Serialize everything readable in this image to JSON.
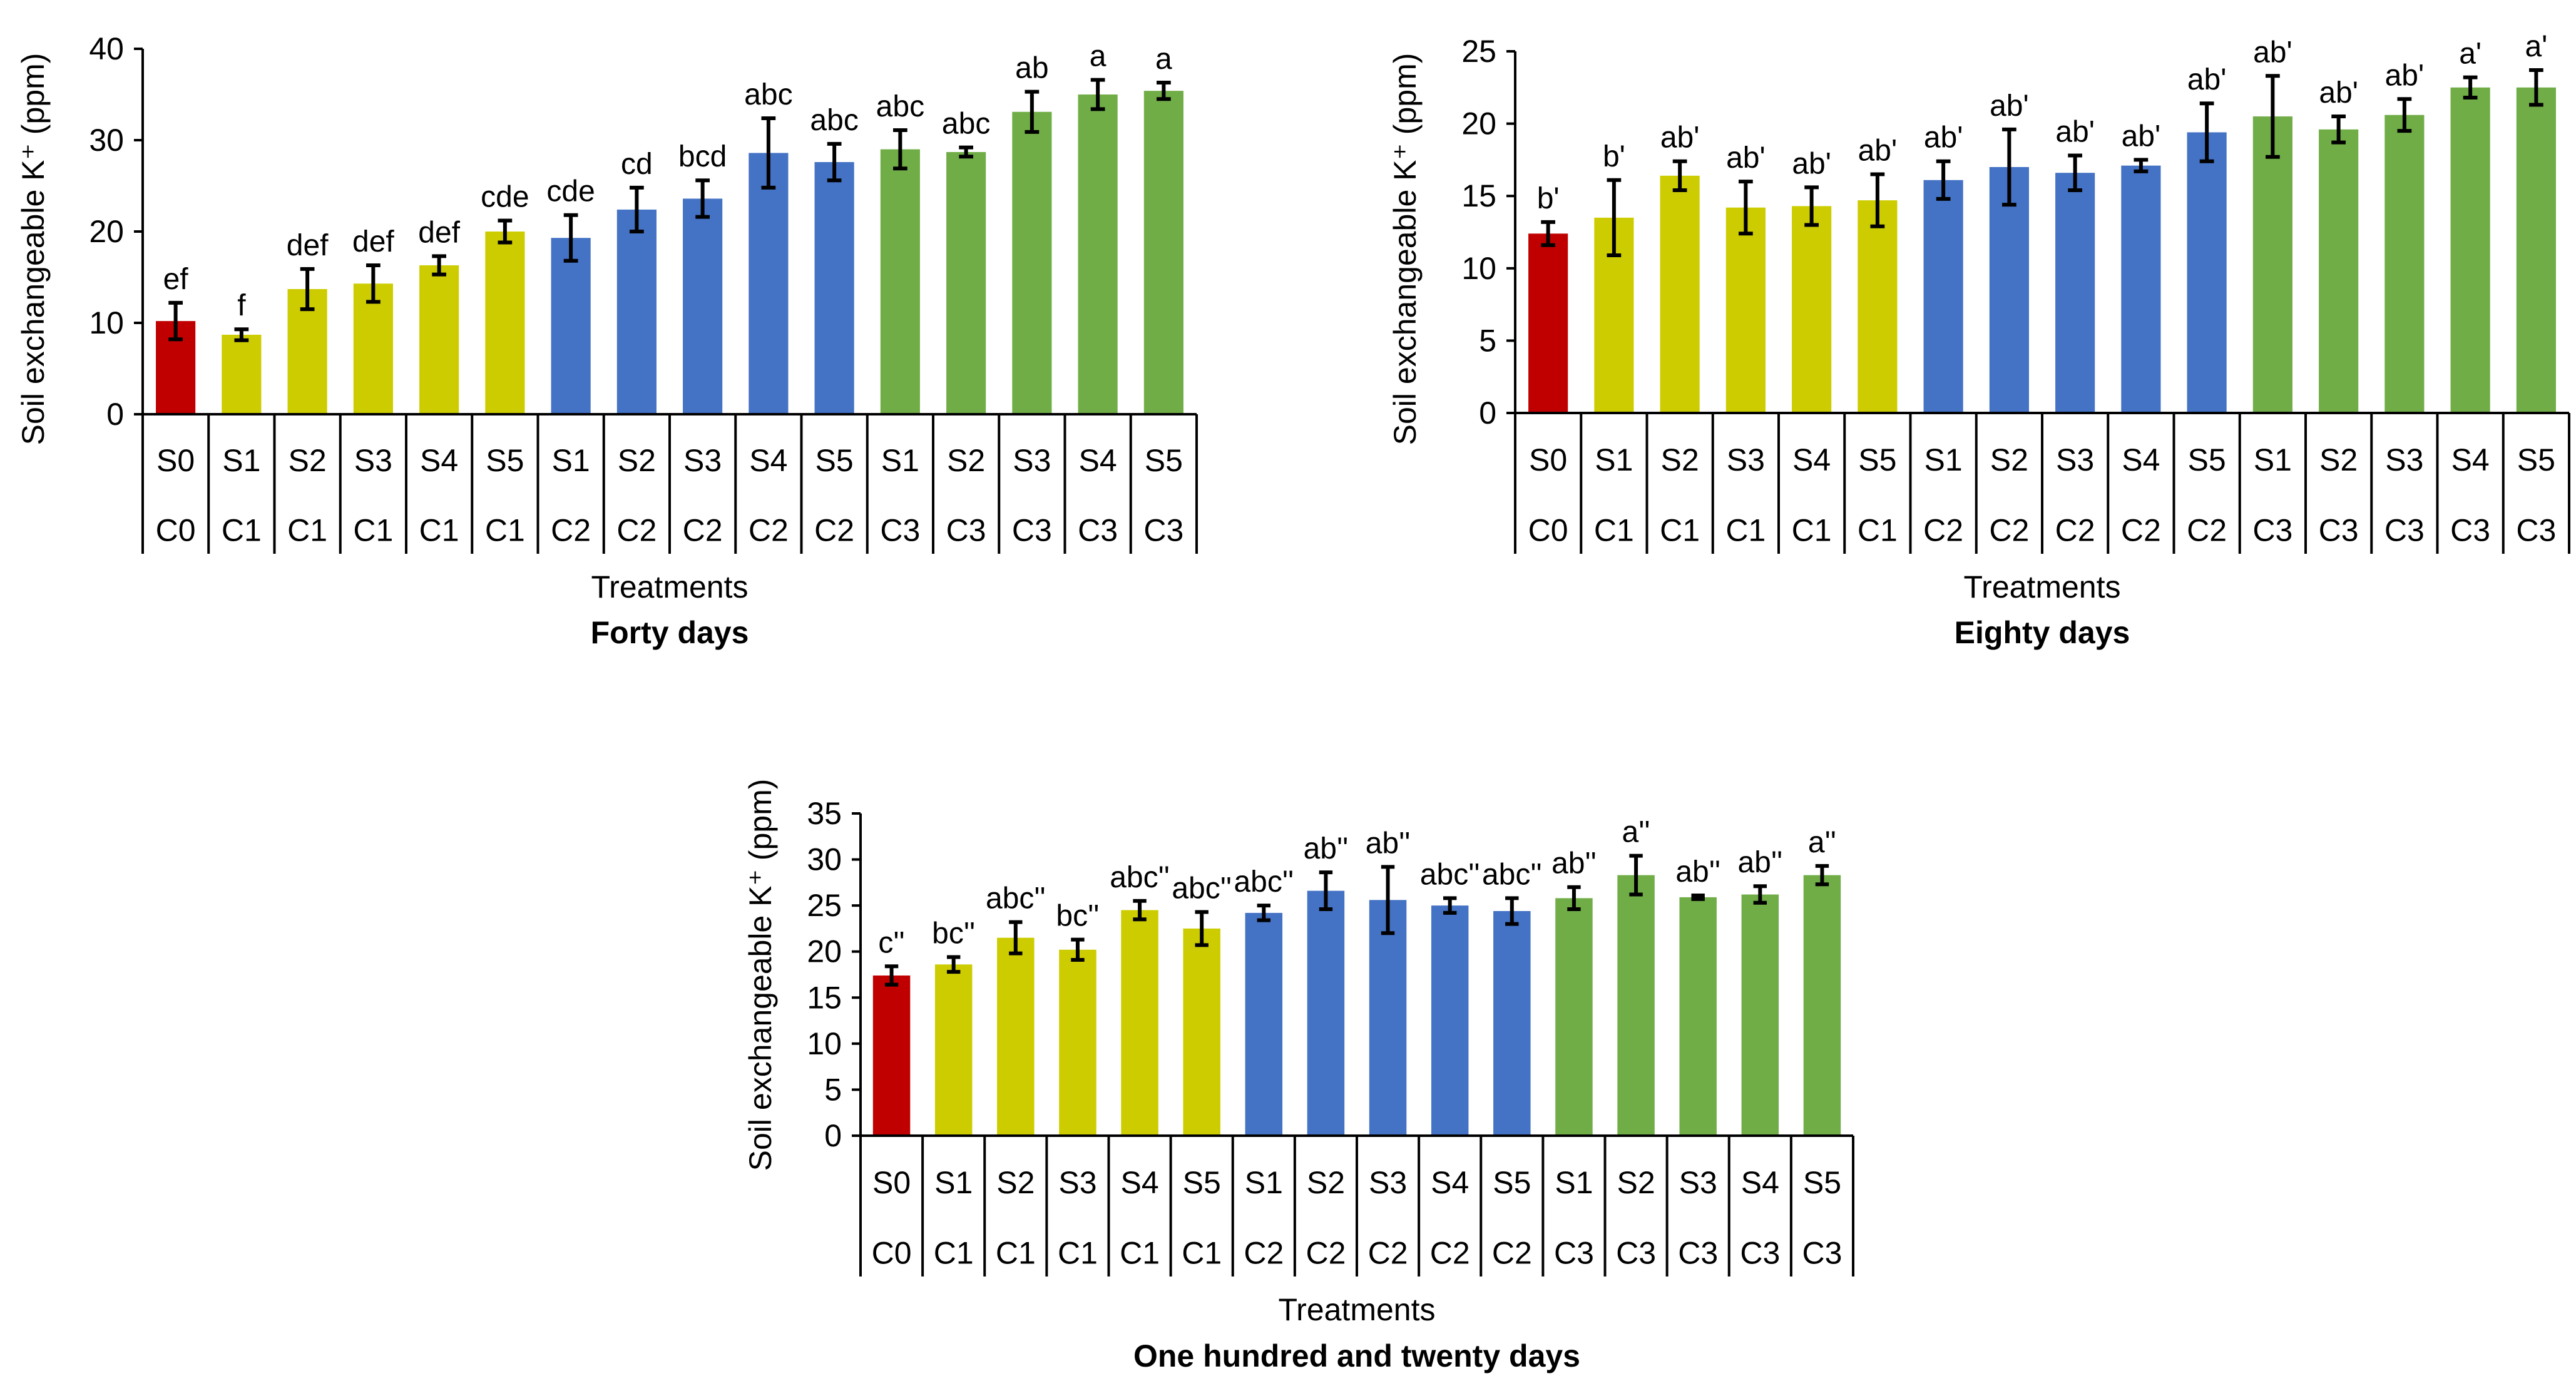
{
  "chart_data": [
    {
      "type": "bar",
      "title": "Forty days",
      "xlabel": "Treatments",
      "ylabel": "Soil exchangeable K⁺ (ppm)",
      "ylim": [
        0,
        40
      ],
      "yticks": [
        0,
        10,
        20,
        30,
        40
      ],
      "categories": [
        "S0 C0",
        "S1 C1",
        "S2 C1",
        "S3 C1",
        "S4 C1",
        "S5 C1",
        "S1 C2",
        "S2 C2",
        "S3 C2",
        "S4 C2",
        "S5 C2",
        "S1 C3",
        "S2 C3",
        "S3 C3",
        "S4 C3",
        "S5 C3"
      ],
      "level1": [
        "S0",
        "S1",
        "S2",
        "S3",
        "S4",
        "S5",
        "S1",
        "S2",
        "S3",
        "S4",
        "S5",
        "S1",
        "S2",
        "S3",
        "S4",
        "S5"
      ],
      "level2": [
        "C0",
        "C1",
        "C1",
        "C1",
        "C1",
        "C1",
        "C2",
        "C2",
        "C2",
        "C2",
        "C2",
        "C3",
        "C3",
        "C3",
        "C3",
        "C3"
      ],
      "values": [
        10.2,
        8.7,
        13.7,
        14.3,
        16.3,
        20.0,
        19.3,
        22.4,
        23.6,
        28.6,
        27.6,
        29.0,
        28.7,
        33.1,
        35.0,
        35.4
      ],
      "errors": [
        2.0,
        0.6,
        2.2,
        2.0,
        1.0,
        1.2,
        2.5,
        2.4,
        2.0,
        3.8,
        2.0,
        2.1,
        0.5,
        2.2,
        1.6,
        0.9
      ],
      "letters": [
        "ef",
        "f",
        "def",
        "def",
        "def",
        "cde",
        "cde",
        "cd",
        "bcd",
        "abc",
        "abc",
        "abc",
        "abc",
        "ab",
        "a",
        "a"
      ]
    },
    {
      "type": "bar",
      "title": "Eighty days",
      "xlabel": "Treatments",
      "ylabel": "Soil exchangeable K⁺ (ppm)",
      "ylim": [
        0,
        25
      ],
      "yticks": [
        0,
        5,
        10,
        15,
        20,
        25
      ],
      "categories": [
        "S0 C0",
        "S1 C1",
        "S2 C1",
        "S3 C1",
        "S4 C1",
        "S5 C1",
        "S1 C2",
        "S2 C2",
        "S3 C2",
        "S4 C2",
        "S5 C2",
        "S1 C3",
        "S2 C3",
        "S3 C3",
        "S4 C3",
        "S5 C3"
      ],
      "level1": [
        "S0",
        "S1",
        "S2",
        "S3",
        "S4",
        "S5",
        "S1",
        "S2",
        "S3",
        "S4",
        "S5",
        "S1",
        "S2",
        "S3",
        "S4",
        "S5"
      ],
      "level2": [
        "C0",
        "C1",
        "C1",
        "C1",
        "C1",
        "C1",
        "C2",
        "C2",
        "C2",
        "C2",
        "C2",
        "C3",
        "C3",
        "C3",
        "C3",
        "C3"
      ],
      "values": [
        12.4,
        13.5,
        16.4,
        14.2,
        14.3,
        14.7,
        16.1,
        17.0,
        16.6,
        17.1,
        19.4,
        20.5,
        19.6,
        20.6,
        22.5,
        22.5
      ],
      "errors": [
        0.8,
        2.6,
        1.0,
        1.8,
        1.3,
        1.8,
        1.3,
        2.6,
        1.2,
        0.4,
        2.0,
        2.8,
        0.9,
        1.1,
        0.7,
        1.2
      ],
      "letters": [
        "b'",
        "b'",
        "ab'",
        "ab'",
        "ab'",
        "ab'",
        "ab'",
        "ab'",
        "ab'",
        "ab'",
        "ab'",
        "ab'",
        "ab'",
        "ab'",
        "a'",
        "a'"
      ]
    },
    {
      "type": "bar",
      "title": "One hundred and twenty days",
      "xlabel": "Treatments",
      "ylabel": "Soil exchangeable K⁺ (ppm)",
      "ylim": [
        0,
        35
      ],
      "yticks": [
        0,
        5,
        10,
        15,
        20,
        25,
        30,
        35
      ],
      "categories": [
        "S0 C0",
        "S1 C1",
        "S2 C1",
        "S3 C1",
        "S4 C1",
        "S5 C1",
        "S1 C2",
        "S2 C2",
        "S3 C2",
        "S4 C2",
        "S5 C2",
        "S1 C3",
        "S2 C3",
        "S3 C3",
        "S4 C3",
        "S5 C3"
      ],
      "level1": [
        "S0",
        "S1",
        "S2",
        "S3",
        "S4",
        "S5",
        "S1",
        "S2",
        "S3",
        "S4",
        "S5",
        "S1",
        "S2",
        "S3",
        "S4",
        "S5"
      ],
      "level2": [
        "C0",
        "C1",
        "C1",
        "C1",
        "C1",
        "C1",
        "C2",
        "C2",
        "C2",
        "C2",
        "C2",
        "C3",
        "C3",
        "C3",
        "C3",
        "C3"
      ],
      "values": [
        17.4,
        18.6,
        21.5,
        20.2,
        24.5,
        22.5,
        24.2,
        26.6,
        25.6,
        25.0,
        24.4,
        25.8,
        28.3,
        25.9,
        26.2,
        28.3
      ],
      "errors": [
        1.0,
        0.8,
        1.7,
        1.1,
        1.0,
        1.8,
        0.8,
        2.0,
        3.6,
        0.8,
        1.4,
        1.2,
        2.1,
        0.2,
        0.9,
        1.0
      ],
      "letters": [
        "c''",
        "bc''",
        "abc''",
        "bc''",
        "abc''",
        "abc''",
        "abc''",
        "ab''",
        "ab''",
        "abc''",
        "abc''",
        "ab''",
        "a''",
        "ab''",
        "ab''",
        "a''"
      ]
    }
  ],
  "colors": {
    "C0": "#C00000",
    "C1": "#CCCC00",
    "C2": "#4472C4",
    "C3": "#70AD47"
  }
}
